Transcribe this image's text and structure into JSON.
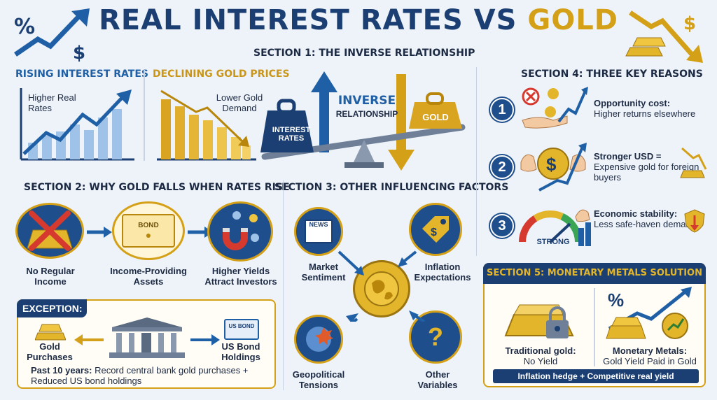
{
  "title": {
    "part1": "REAL INTEREST RATES VS",
    "part2": "GOLD"
  },
  "section1": {
    "heading": "SECTION 1: THE INVERSE RELATIONSHIP",
    "rising_heading": "RISING INTEREST RATES",
    "declining_heading": "DECLINING GOLD PRICES",
    "higher_real_rates": "Higher Real Rates",
    "lower_gold_demand": "Lower Gold Demand",
    "inverse_title": "INVERSE",
    "inverse_sub": "RELATIONSHIP",
    "weight_left": "INTEREST RATES",
    "weight_right": "GOLD"
  },
  "section2": {
    "heading": "SECTION 2: WHY GOLD FALLS WHEN RATES RISE",
    "items": [
      {
        "label": "No Regular Income"
      },
      {
        "label": "Income-Providing Assets",
        "badge": "BOND"
      },
      {
        "label": "Higher Yields Attract Investors"
      }
    ],
    "exception": {
      "title": "EXCEPTION:",
      "left_label": "Gold Purchases",
      "right_label": "US Bond Holdings",
      "right_badge": "US BOND",
      "footnote_bold": "Past 10 years:",
      "footnote": "Record central bank gold purchases + Reduced US bond holdings"
    }
  },
  "section3": {
    "heading": "SECTION 3: OTHER INFLUENCING FACTORS",
    "factors": [
      {
        "label": "Market Sentiment",
        "badge": "NEWS"
      },
      {
        "label": "Inflation Expectations"
      },
      {
        "label": "Geopolitical Tensions"
      },
      {
        "label": "Other Variables"
      }
    ]
  },
  "section4": {
    "heading": "SECTION 4: THREE KEY REASONS",
    "reasons": [
      {
        "num": "1",
        "bold": "Opportunity cost:",
        "text": "Higher returns elsewhere"
      },
      {
        "num": "2",
        "bold": "Stronger USD =",
        "text": "Expensive gold for foreign buyers"
      },
      {
        "num": "3",
        "bold": "Economic stability:",
        "text": "Less safe-haven demand",
        "gauge_label": "STRONG"
      }
    ]
  },
  "section5": {
    "heading": "SECTION 5: MONETARY METALS SOLUTION",
    "left_bold": "Traditional gold:",
    "left_text": "No Yield",
    "right_bold": "Monetary Metals:",
    "right_text": "Gold Yield Paid in Gold",
    "banner": "Inflation hedge + Competitive real yield"
  },
  "colors": {
    "navy": "#1b3f73",
    "gold": "#d4a017",
    "blue": "#1f5fa6"
  }
}
